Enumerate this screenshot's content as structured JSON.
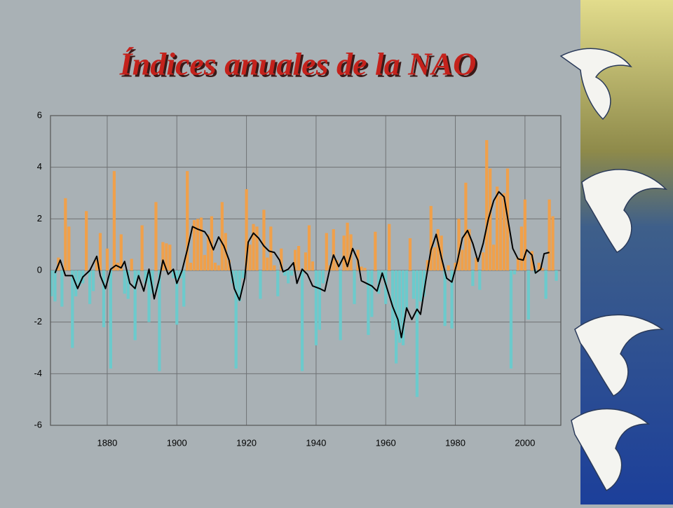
{
  "chart_data": {
    "type": "bar",
    "title": "Índices anuales de la NAO",
    "x": [
      1864,
      1865,
      1866,
      1867,
      1868,
      1869,
      1870,
      1871,
      1872,
      1873,
      1874,
      1875,
      1876,
      1877,
      1878,
      1879,
      1880,
      1881,
      1882,
      1883,
      1884,
      1885,
      1886,
      1887,
      1888,
      1889,
      1890,
      1891,
      1892,
      1893,
      1894,
      1895,
      1896,
      1897,
      1898,
      1899,
      1900,
      1901,
      1902,
      1903,
      1904,
      1905,
      1906,
      1907,
      1908,
      1909,
      1910,
      1911,
      1912,
      1913,
      1914,
      1915,
      1916,
      1917,
      1918,
      1919,
      1920,
      1921,
      1922,
      1923,
      1924,
      1925,
      1926,
      1927,
      1928,
      1929,
      1930,
      1931,
      1932,
      1933,
      1934,
      1935,
      1936,
      1937,
      1938,
      1939,
      1940,
      1941,
      1942,
      1943,
      1944,
      1945,
      1946,
      1947,
      1948,
      1949,
      1950,
      1951,
      1952,
      1953,
      1954,
      1955,
      1956,
      1957,
      1958,
      1959,
      1960,
      1961,
      1962,
      1963,
      1964,
      1965,
      1966,
      1967,
      1968,
      1969,
      1970,
      1971,
      1972,
      1973,
      1974,
      1975,
      1976,
      1977,
      1978,
      1979,
      1980,
      1981,
      1982,
      1983,
      1984,
      1985,
      1986,
      1987,
      1988,
      1989,
      1990,
      1991,
      1992,
      1993,
      1994,
      1995,
      1996,
      1997,
      1998,
      1999,
      2000,
      2001,
      2002,
      2003,
      2004,
      2005,
      2006,
      2007,
      2008,
      2009
    ],
    "values": [
      -1.0,
      -1.2,
      0.5,
      -1.4,
      2.8,
      1.7,
      -3.0,
      -1.0,
      -0.6,
      -0.5,
      2.3,
      -1.3,
      -0.8,
      0.4,
      1.45,
      -2.2,
      0.85,
      -3.8,
      3.85,
      0.3,
      1.4,
      -0.9,
      -1.1,
      0.45,
      -2.7,
      -0.3,
      1.75,
      -0.5,
      -2.0,
      -0.9,
      2.65,
      -3.9,
      1.1,
      1.05,
      1.0,
      -0.3,
      -2.1,
      -0.3,
      -1.4,
      3.85,
      0.3,
      1.95,
      2.0,
      2.05,
      0.6,
      1.4,
      2.1,
      0.3,
      0.2,
      2.65,
      1.45,
      0.4,
      -0.5,
      -3.8,
      -1.2,
      -0.3,
      3.15,
      1.0,
      1.8,
      1.7,
      -1.1,
      2.35,
      0.5,
      1.7,
      0.2,
      -1.0,
      0.85,
      -0.2,
      -0.5,
      -0.2,
      0.8,
      0.95,
      -3.9,
      0.7,
      1.75,
      0.35,
      -2.9,
      -2.3,
      -0.5,
      1.45,
      0.2,
      1.6,
      0.4,
      -2.7,
      1.35,
      1.85,
      1.4,
      -1.3,
      0.8,
      0.15,
      0.1,
      -2.5,
      -1.8,
      1.5,
      -0.9,
      -0.3,
      -1.3,
      1.8,
      -2.3,
      -3.6,
      -2.8,
      -2.9,
      -1.5,
      1.25,
      -1.1,
      -4.9,
      -1.2,
      -1.0,
      0.4,
      2.5,
      0.9,
      1.6,
      1.35,
      -2.15,
      0.2,
      -2.25,
      0.3,
      2.0,
      0.8,
      3.4,
      1.6,
      -0.6,
      0.5,
      -0.75,
      0.7,
      5.05,
      3.95,
      1.0,
      3.25,
      2.9,
      3.0,
      3.95,
      -3.8,
      -0.15,
      0.5,
      1.7,
      2.75,
      -1.9,
      0.75,
      -0.1,
      0.3,
      0.1,
      -1.1,
      2.75,
      2.1,
      -0.4
    ],
    "positive_color": "#f0a04a",
    "negative_color": "#6ccacc",
    "smooth": {
      "color": "#000000",
      "x": [
        1865,
        1866.5,
        1868,
        1870,
        1871.5,
        1873,
        1875,
        1877,
        1878,
        1879.5,
        1881,
        1882.5,
        1884,
        1885,
        1886.5,
        1888,
        1889,
        1890.5,
        1892,
        1893.5,
        1895,
        1896,
        1897.5,
        1899,
        1900,
        1901.5,
        1903,
        1904.5,
        1906,
        1908,
        1909,
        1910.5,
        1912,
        1913.5,
        1915,
        1916.5,
        1918,
        1919.5,
        1920.5,
        1922,
        1923.5,
        1925,
        1926.5,
        1928,
        1929.5,
        1930.5,
        1932,
        1933.5,
        1934.5,
        1936,
        1937.5,
        1939,
        1941,
        1942.5,
        1944,
        1945,
        1946.5,
        1948,
        1949,
        1950.5,
        1952,
        1953,
        1954.5,
        1956,
        1957.5,
        1959,
        1960.5,
        1962,
        1963.5,
        1964.5,
        1966,
        1967.5,
        1969,
        1970,
        1971.5,
        1973,
        1974.5,
        1976,
        1977.5,
        1979,
        1980.5,
        1982,
        1983.5,
        1985,
        1986.5,
        1988,
        1989.5,
        1991,
        1992.5,
        1994,
        1995.5,
        1996.5,
        1998,
        1999.5,
        2000.5,
        2002,
        2003,
        2004.5,
        2005.5,
        2007
      ],
      "values": [
        -0.1,
        0.4,
        -0.2,
        -0.2,
        -0.7,
        -0.25,
        0,
        0.55,
        -0.2,
        -0.7,
        0.05,
        0.2,
        0.1,
        0.35,
        -0.5,
        -0.7,
        -0.2,
        -0.8,
        0.05,
        -1.1,
        -0.3,
        0.4,
        -0.15,
        0.05,
        -0.5,
        0,
        0.8,
        1.7,
        1.6,
        1.5,
        1.3,
        0.8,
        1.3,
        0.95,
        0.4,
        -0.7,
        -1.15,
        -0.3,
        1.1,
        1.45,
        1.25,
        0.95,
        0.75,
        0.7,
        0.4,
        -0.05,
        0.05,
        0.3,
        -0.5,
        0.05,
        -0.15,
        -0.6,
        -0.7,
        -0.8,
        0.1,
        0.6,
        0.15,
        0.55,
        0.15,
        0.85,
        0.4,
        -0.4,
        -0.5,
        -0.6,
        -0.8,
        -0.1,
        -0.75,
        -1.4,
        -1.9,
        -2.6,
        -1.45,
        -1.9,
        -1.5,
        -1.7,
        -0.4,
        0.8,
        1.4,
        0.5,
        -0.3,
        -0.45,
        0.3,
        1.25,
        1.55,
        1.05,
        0.35,
        1.05,
        2.0,
        2.7,
        3.05,
        2.85,
        1.65,
        0.85,
        0.45,
        0.4,
        0.8,
        0.6,
        -0.1,
        0.05,
        0.65,
        0.7
      ]
    },
    "xlim": [
      1863.7,
      2010.3
    ],
    "ylim": [
      -6,
      6
    ],
    "xticks": [
      1880,
      1900,
      1920,
      1940,
      1960,
      1980,
      2000
    ],
    "yticks": [
      -6,
      -4,
      -2,
      0,
      2,
      4,
      6
    ],
    "grid": true
  }
}
